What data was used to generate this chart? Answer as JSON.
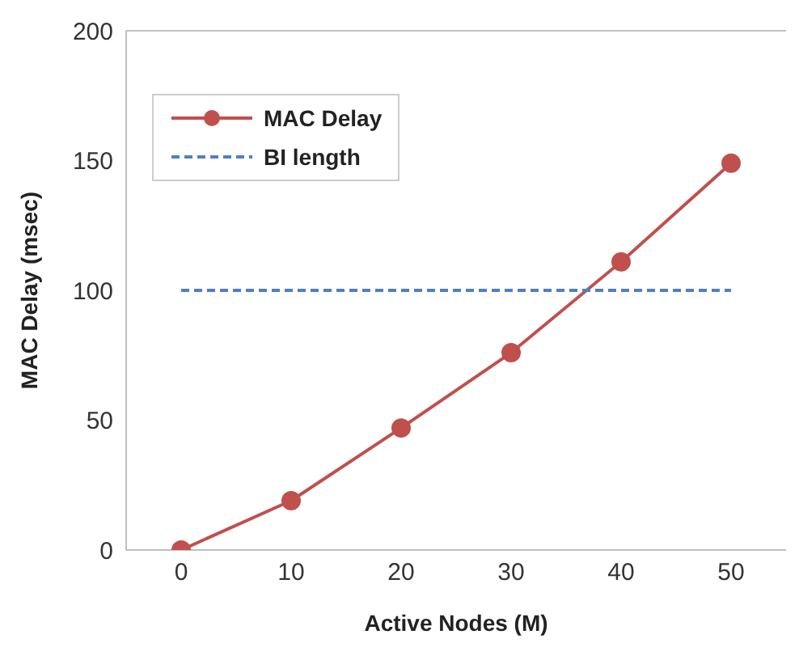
{
  "chart_data": {
    "type": "line",
    "xlabel": "Active Nodes (M)",
    "ylabel": "MAC Delay (msec)",
    "x": [
      0,
      10,
      20,
      30,
      40,
      50
    ],
    "series": [
      {
        "name": "MAC Delay",
        "color": "#c0504d",
        "values": [
          0,
          19,
          47,
          76,
          111,
          149
        ],
        "marker": "circle",
        "line_style": "solid"
      },
      {
        "name": "BI length",
        "color": "#4f81bd",
        "values": [
          100,
          100,
          100,
          100,
          100,
          100
        ],
        "marker": "none",
        "line_style": "dashed"
      }
    ],
    "xlim": [
      -5,
      55
    ],
    "xticks": [
      0,
      10,
      20,
      30,
      40,
      50
    ],
    "ylim": [
      0,
      200
    ],
    "yticks": [
      0,
      50,
      100,
      150,
      200
    ],
    "grid": false,
    "legend": "top left"
  }
}
